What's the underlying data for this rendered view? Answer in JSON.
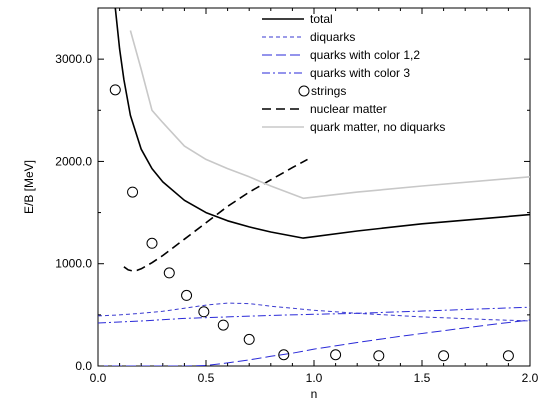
{
  "chart_data": {
    "type": "line",
    "xlabel": "n",
    "ylabel": "E/B [MeV]",
    "xlim": [
      0.0,
      2.0
    ],
    "ylim": [
      0.0,
      3500.0
    ],
    "x_ticks": [
      0.0,
      0.5,
      1.0,
      1.5,
      2.0
    ],
    "x_tick_labels": [
      "0.0",
      "0.5",
      "1.0",
      "1.5",
      "2.0"
    ],
    "y_ticks": [
      0,
      1000,
      2000,
      3000
    ],
    "y_tick_labels": [
      "0.0",
      "1000.0",
      "2000.0",
      "3000.0"
    ],
    "grid": false,
    "legend_position": "top-right",
    "series": [
      {
        "name": "total",
        "style": "solid",
        "color": "#000000",
        "x": [
          0.08,
          0.1,
          0.12,
          0.15,
          0.2,
          0.25,
          0.3,
          0.4,
          0.5,
          0.6,
          0.7,
          0.8,
          0.95,
          1.2,
          1.5,
          2.0
        ],
        "y": [
          3500,
          3100,
          2800,
          2450,
          2120,
          1930,
          1800,
          1620,
          1500,
          1420,
          1360,
          1310,
          1250,
          1320,
          1390,
          1480
        ]
      },
      {
        "name": "diquarks",
        "style": "dashed-short",
        "color": "#3a3ad0",
        "x": [
          0.0,
          0.1,
          0.2,
          0.3,
          0.4,
          0.5,
          0.6,
          0.7,
          0.8,
          1.0,
          1.2,
          1.5,
          1.8,
          2.0
        ],
        "y": [
          490,
          500,
          515,
          535,
          565,
          595,
          615,
          610,
          585,
          545,
          515,
          480,
          455,
          440
        ]
      },
      {
        "name": "quarks  with color 1,2",
        "style": "dashed-long",
        "color": "#2a2ad8",
        "x": [
          0.0,
          0.2,
          0.4,
          0.5,
          0.6,
          0.7,
          0.8,
          0.9,
          1.0,
          1.2,
          1.4,
          1.6,
          1.8,
          2.0
        ],
        "y": [
          0,
          0,
          0,
          5,
          30,
          60,
          95,
          125,
          165,
          230,
          290,
          345,
          400,
          450
        ]
      },
      {
        "name": "quarks with color 3",
        "style": "dash-dot",
        "color": "#2a2ad8",
        "x": [
          0.0,
          0.2,
          0.4,
          0.6,
          0.8,
          1.0,
          1.2,
          1.4,
          1.6,
          1.8,
          2.0
        ],
        "y": [
          420,
          440,
          465,
          480,
          495,
          505,
          515,
          530,
          545,
          560,
          575
        ]
      },
      {
        "name": "strings",
        "style": "markers",
        "color": "#000000",
        "x": [
          0.08,
          0.16,
          0.25,
          0.33,
          0.41,
          0.49,
          0.58,
          0.7,
          0.86,
          1.1,
          1.3,
          1.6,
          1.9
        ],
        "y": [
          2700,
          1700,
          1200,
          910,
          690,
          530,
          400,
          260,
          110,
          110,
          100,
          100,
          100
        ]
      },
      {
        "name": "nuclear matter",
        "style": "dashed-thick",
        "color": "#000000",
        "x": [
          0.12,
          0.14,
          0.16,
          0.18,
          0.2,
          0.25,
          0.3,
          0.4,
          0.5,
          0.6,
          0.7,
          0.8,
          0.9,
          0.97
        ],
        "y": [
          970,
          940,
          930,
          935,
          950,
          1010,
          1080,
          1240,
          1400,
          1560,
          1700,
          1820,
          1940,
          2020
        ]
      },
      {
        "name": "quark matter, no diquarks",
        "style": "solid-light",
        "color": "#c8c8c8",
        "x": [
          0.15,
          0.2,
          0.25,
          0.3,
          0.4,
          0.5,
          0.6,
          0.7,
          0.8,
          0.95,
          1.2,
          1.5,
          2.0
        ],
        "y": [
          3280,
          2900,
          2500,
          2380,
          2150,
          2020,
          1930,
          1850,
          1760,
          1640,
          1700,
          1760,
          1850
        ]
      }
    ]
  }
}
